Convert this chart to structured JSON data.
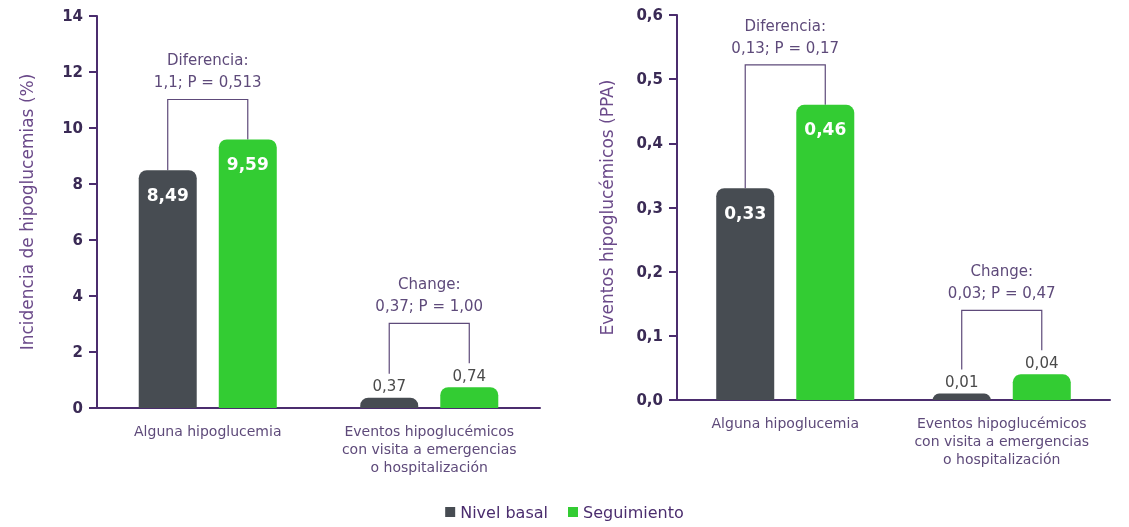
{
  "chart_data": [
    {
      "type": "bar",
      "ylabel": "Incidencia de hipoglucemias (%)",
      "categories": [
        "Alguna hipoglucemia",
        "Eventos hipoglucémicos\ncon visita a emergencias\no hospitalización"
      ],
      "series": [
        {
          "name": "Nivel basal",
          "color": "#474c52",
          "values": [
            8.49,
            0.37
          ],
          "value_labels": [
            "8,49",
            "0,37"
          ]
        },
        {
          "name": "Seguimiento",
          "color": "#33cc33",
          "values": [
            9.59,
            0.74
          ],
          "value_labels": [
            "9,59",
            "0,74"
          ]
        }
      ],
      "ylim": [
        0,
        14
      ],
      "yticks": [
        0,
        2,
        4,
        6,
        8,
        10,
        12,
        14
      ],
      "grid": false,
      "legend": "bottom",
      "annotations": [
        "Diferencia:\n1,1; P = 0,513",
        "Change:\n0,37; P = 1,00"
      ]
    },
    {
      "type": "bar",
      "ylabel": "Eventos hipoglucémicos (PPA)",
      "categories": [
        "Alguna hipoglucemia",
        "Eventos hipoglucémicos\ncon visita a emergencias\no hospitalización"
      ],
      "series": [
        {
          "color": "#474c52",
          "values": [
            0.33,
            0.01
          ],
          "value_labels": [
            "0,33",
            "0,01"
          ]
        },
        {
          "color": "#33cc33",
          "values": [
            0.46,
            0.04
          ],
          "value_labels": [
            "0,46",
            "0,04"
          ]
        }
      ],
      "ylim": [
        0,
        0.6
      ],
      "yticks": [
        {
          "value": 0,
          "label": "0,0"
        },
        {
          "value": 0.1,
          "label": "0,1"
        },
        {
          "value": 0.2,
          "label": "0,2"
        },
        {
          "value": 0.3,
          "label": "0,3"
        },
        {
          "value": 0.4,
          "label": "0,4"
        },
        {
          "value": 0.5,
          "label": "0,5"
        },
        {
          "value": 0.6,
          "label": "0,6"
        }
      ],
      "grid": false,
      "legend": false,
      "annotations": [
        "Diferencia:\n0,13; P = 0,17",
        "Change:\n0,03; P = 0,47"
      ]
    }
  ]
}
